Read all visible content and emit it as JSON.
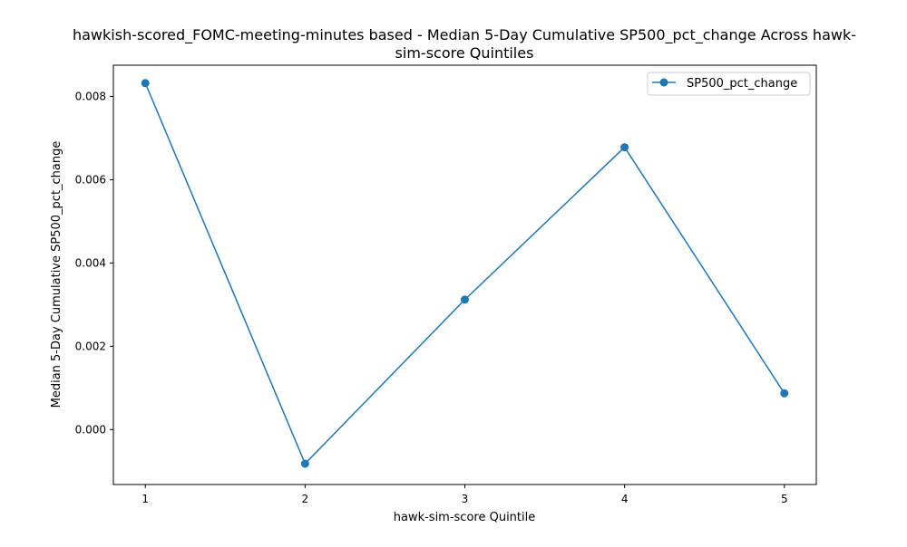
{
  "chart_data": {
    "type": "line",
    "title_lines": [
      "hawkish-scored_FOMC-meeting-minutes based - Median 5-Day Cumulative SP500_pct_change Across hawk-",
      "sim-score Quintiles"
    ],
    "xlabel": "hawk-sim-score Quintile",
    "ylabel": "Median 5-Day Cumulative SP500_pct_change",
    "x": [
      1,
      2,
      3,
      4,
      5
    ],
    "x_tick_labels": [
      "1",
      "2",
      "3",
      "4",
      "5"
    ],
    "xlim": [
      0.8,
      5.2
    ],
    "ylim": [
      -0.00132,
      0.00875
    ],
    "y_ticks": [
      0.0,
      0.002,
      0.004,
      0.006,
      0.008
    ],
    "y_tick_labels": [
      "0.000",
      "0.002",
      "0.004",
      "0.006",
      "0.008"
    ],
    "series": [
      {
        "name": "SP500_pct_change",
        "color": "#1f77b4",
        "marker": "circle",
        "values": [
          0.00832,
          -0.00082,
          0.00312,
          0.00678,
          0.00087
        ]
      }
    ],
    "legend": {
      "placement": "top-right",
      "entries": [
        "SP500_pct_change"
      ]
    },
    "grid": false
  }
}
